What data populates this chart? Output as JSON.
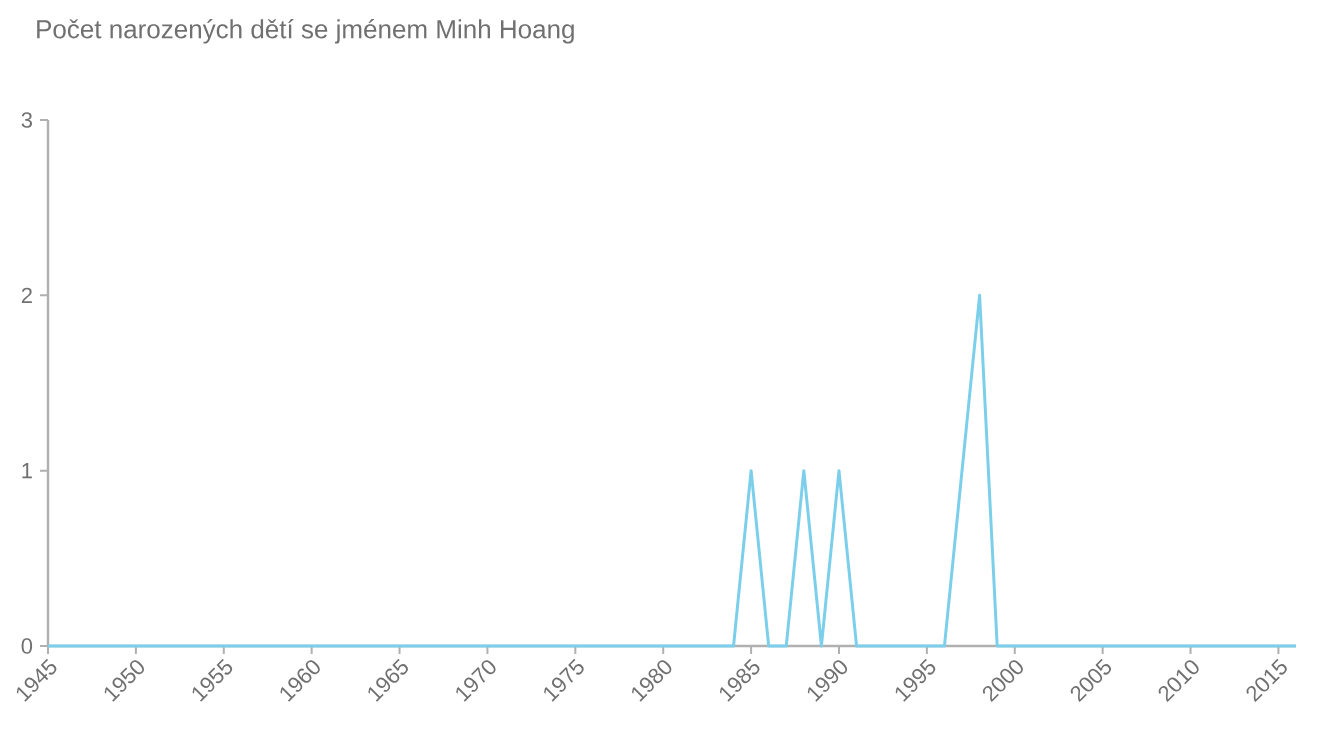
{
  "chart_data": {
    "type": "line",
    "title": "Počet narozených dětí se jménem Minh Hoang",
    "x": [
      1945,
      1946,
      1947,
      1948,
      1949,
      1950,
      1951,
      1952,
      1953,
      1954,
      1955,
      1956,
      1957,
      1958,
      1959,
      1960,
      1961,
      1962,
      1963,
      1964,
      1965,
      1966,
      1967,
      1968,
      1969,
      1970,
      1971,
      1972,
      1973,
      1974,
      1975,
      1976,
      1977,
      1978,
      1979,
      1980,
      1981,
      1982,
      1983,
      1984,
      1985,
      1986,
      1987,
      1988,
      1989,
      1990,
      1991,
      1992,
      1993,
      1994,
      1995,
      1996,
      1997,
      1998,
      1999,
      2000,
      2001,
      2002,
      2003,
      2004,
      2005,
      2006,
      2007,
      2008,
      2009,
      2010,
      2011,
      2012,
      2013,
      2014,
      2015,
      2016
    ],
    "values": [
      0,
      0,
      0,
      0,
      0,
      0,
      0,
      0,
      0,
      0,
      0,
      0,
      0,
      0,
      0,
      0,
      0,
      0,
      0,
      0,
      0,
      0,
      0,
      0,
      0,
      0,
      0,
      0,
      0,
      0,
      0,
      0,
      0,
      0,
      0,
      0,
      0,
      0,
      0,
      0,
      1,
      0,
      0,
      1,
      0,
      1,
      0,
      0,
      0,
      0,
      0,
      0,
      null,
      2,
      0,
      0,
      0,
      0,
      0,
      0,
      0,
      0,
      0,
      0,
      0,
      0,
      0,
      0,
      0,
      0,
      0,
      0
    ],
    "color": "#7ccfea",
    "xlim": [
      1945,
      2016
    ],
    "xticks": [
      1945,
      1950,
      1955,
      1960,
      1965,
      1970,
      1975,
      1980,
      1985,
      1990,
      1995,
      2000,
      2005,
      2010,
      2015
    ],
    "ylim": [
      0,
      3
    ],
    "yticks": [
      0,
      1,
      2,
      3
    ],
    "grid": false,
    "marker": "none",
    "line_style": "solid"
  }
}
